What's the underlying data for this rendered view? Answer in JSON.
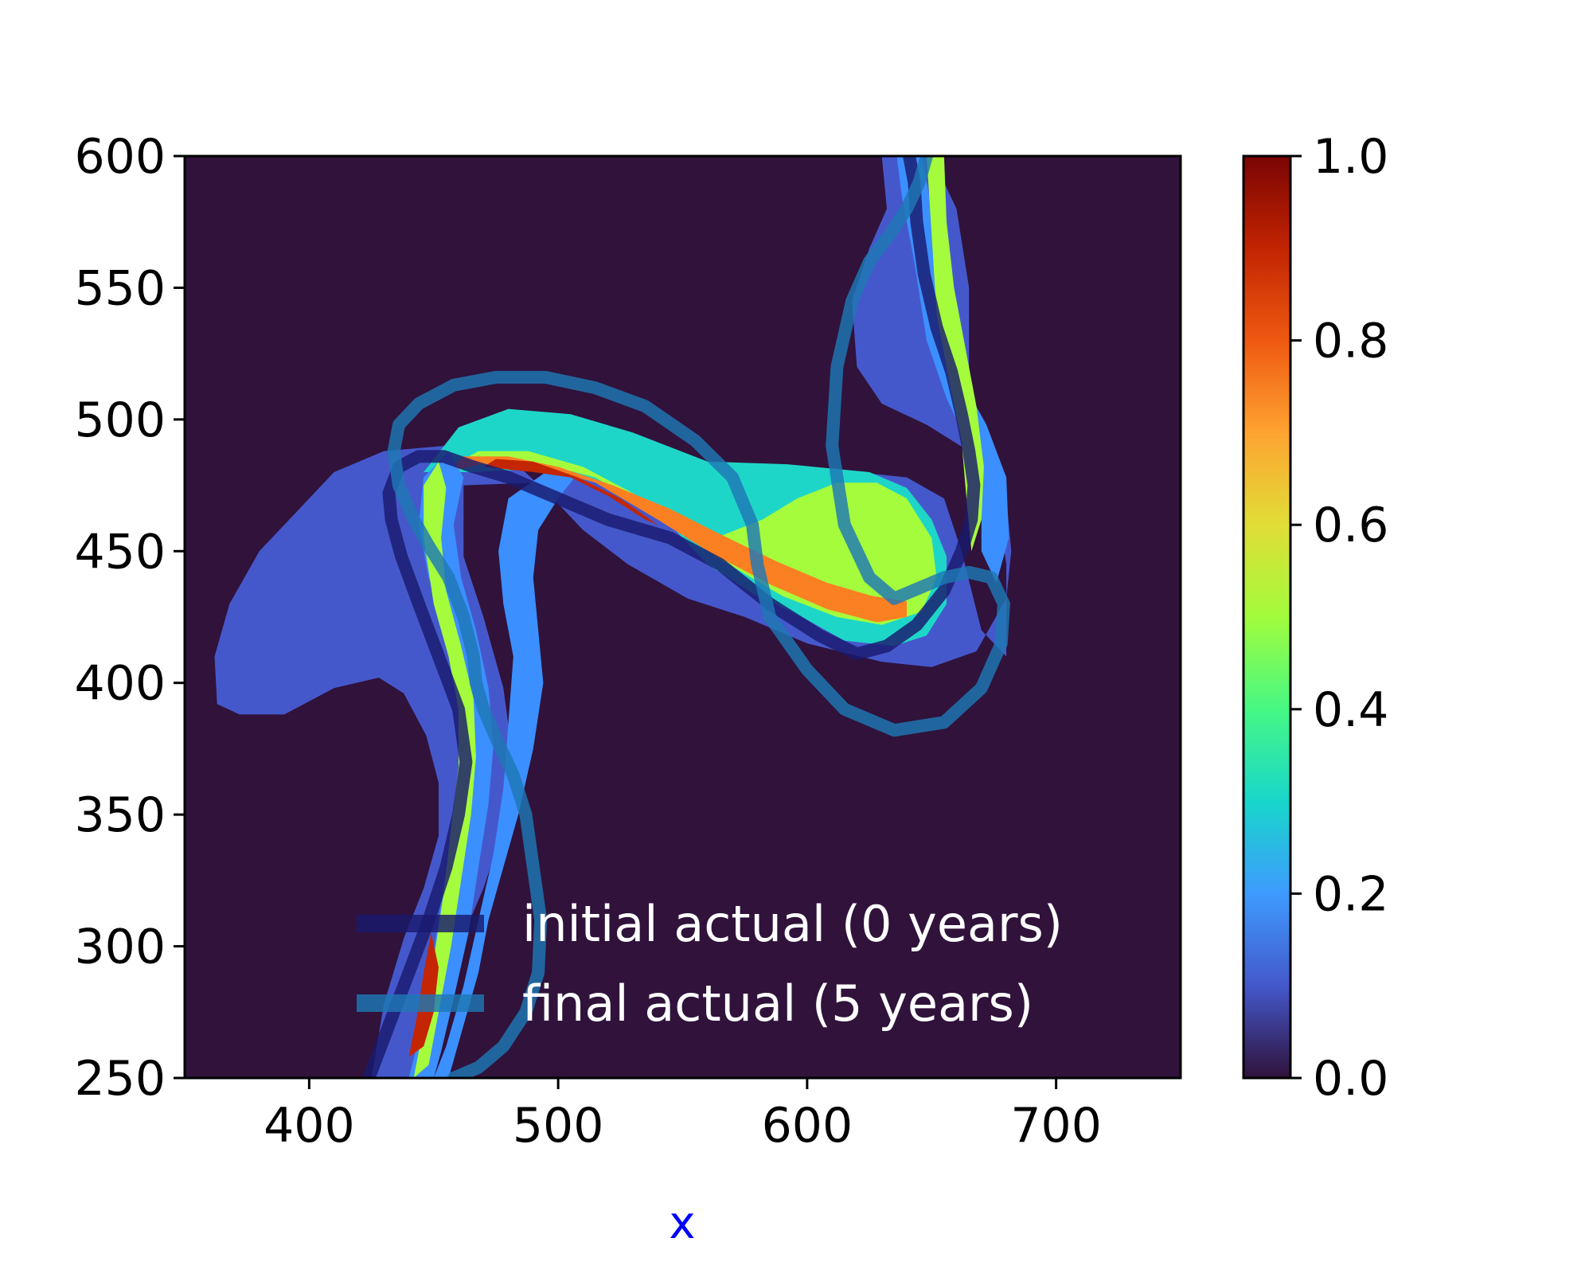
{
  "chart_data": {
    "type": "heatmap",
    "title": "",
    "xlabel": "x",
    "ylabel": "",
    "xlim": [
      350,
      750
    ],
    "ylim": [
      250,
      600
    ],
    "x_ticks": [
      "400",
      "500",
      "600",
      "700"
    ],
    "y_ticks": [
      "250",
      "300",
      "350",
      "400",
      "450",
      "500",
      "550",
      "600"
    ],
    "colorbar": {
      "range": [
        0.0,
        1.0
      ],
      "ticks": [
        "0.0",
        "0.2",
        "0.4",
        "0.6",
        "0.8",
        "1.0"
      ],
      "colormap": "turbo"
    },
    "background_value": 0.0,
    "background_color": "#30123b",
    "regions": [
      {
        "value": 0.1,
        "color": "#4558cb",
        "points": [
          [
            363,
            392
          ],
          [
            372,
            388
          ],
          [
            390,
            388
          ],
          [
            410,
            398
          ],
          [
            428,
            402
          ],
          [
            438,
            396
          ],
          [
            447,
            380
          ],
          [
            452,
            362
          ],
          [
            452,
            342
          ],
          [
            446,
            322
          ],
          [
            438,
            303
          ],
          [
            430,
            278
          ],
          [
            425,
            250
          ],
          [
            445,
            250
          ],
          [
            452,
            278
          ],
          [
            460,
            300
          ],
          [
            470,
            322
          ],
          [
            478,
            345
          ],
          [
            482,
            370
          ],
          [
            478,
            398
          ],
          [
            470,
            425
          ],
          [
            462,
            448
          ],
          [
            462,
            475
          ],
          [
            490,
            476
          ],
          [
            545,
            482
          ],
          [
            600,
            482
          ],
          [
            640,
            478
          ],
          [
            655,
            470
          ],
          [
            662,
            450
          ],
          [
            670,
            420
          ],
          [
            680,
            410
          ],
          [
            680,
            445
          ],
          [
            676,
            470
          ],
          [
            665,
            488
          ],
          [
            648,
            498
          ],
          [
            630,
            506
          ],
          [
            620,
            520
          ],
          [
            618,
            545
          ],
          [
            625,
            565
          ],
          [
            632,
            580
          ],
          [
            630,
            600
          ],
          [
            650,
            600
          ],
          [
            660,
            580
          ],
          [
            665,
            550
          ],
          [
            665,
            520
          ],
          [
            668,
            495
          ],
          [
            680,
            470
          ],
          [
            682,
            450
          ],
          [
            680,
            432
          ],
          [
            668,
            412
          ],
          [
            650,
            406
          ],
          [
            630,
            408
          ],
          [
            600,
            415
          ],
          [
            575,
            425
          ],
          [
            552,
            432
          ],
          [
            528,
            445
          ],
          [
            510,
            458
          ],
          [
            498,
            470
          ],
          [
            480,
            486
          ],
          [
            455,
            490
          ],
          [
            430,
            488
          ],
          [
            410,
            480
          ],
          [
            395,
            465
          ],
          [
            380,
            450
          ],
          [
            368,
            430
          ],
          [
            362,
            410
          ]
        ]
      },
      {
        "value": 0.2,
        "color": "#3b8fff",
        "points": [
          [
            450,
            250
          ],
          [
            455,
            262
          ],
          [
            462,
            285
          ],
          [
            468,
            310
          ],
          [
            474,
            335
          ],
          [
            478,
            360
          ],
          [
            480,
            385
          ],
          [
            482,
            410
          ],
          [
            478,
            430
          ],
          [
            476,
            450
          ],
          [
            480,
            470
          ],
          [
            495,
            480
          ],
          [
            510,
            482
          ],
          [
            500,
            470
          ],
          [
            492,
            458
          ],
          [
            490,
            440
          ],
          [
            492,
            420
          ],
          [
            494,
            400
          ],
          [
            490,
            375
          ],
          [
            484,
            350
          ],
          [
            478,
            330
          ],
          [
            472,
            310
          ],
          [
            468,
            290
          ],
          [
            462,
            270
          ],
          [
            456,
            250
          ]
        ]
      },
      {
        "value": 0.3,
        "color": "#1ed6c8",
        "points": [
          [
            446,
            480
          ],
          [
            460,
            497
          ],
          [
            480,
            504
          ],
          [
            505,
            502
          ],
          [
            530,
            495
          ],
          [
            560,
            484
          ],
          [
            592,
            483
          ],
          [
            625,
            480
          ],
          [
            640,
            474
          ],
          [
            650,
            462
          ],
          [
            656,
            448
          ],
          [
            656,
            430
          ],
          [
            648,
            418
          ],
          [
            635,
            414
          ],
          [
            615,
            416
          ],
          [
            598,
            425
          ],
          [
            578,
            434
          ],
          [
            560,
            445
          ],
          [
            545,
            460
          ],
          [
            530,
            472
          ],
          [
            508,
            479
          ],
          [
            486,
            481
          ],
          [
            465,
            480
          ]
        ]
      },
      {
        "value": 0.5,
        "color": "#a4fc3c",
        "points": [
          [
            453,
            480
          ],
          [
            468,
            484
          ],
          [
            490,
            484
          ],
          [
            515,
            478
          ],
          [
            542,
            462
          ],
          [
            565,
            447
          ],
          [
            590,
            433
          ],
          [
            612,
            425
          ],
          [
            630,
            422
          ],
          [
            646,
            427
          ],
          [
            652,
            440
          ],
          [
            650,
            455
          ],
          [
            640,
            470
          ],
          [
            628,
            476
          ],
          [
            612,
            476
          ],
          [
            596,
            470
          ],
          [
            582,
            462
          ],
          [
            566,
            456
          ],
          [
            550,
            460
          ],
          [
            530,
            472
          ],
          [
            510,
            482
          ],
          [
            488,
            488
          ],
          [
            468,
            488
          ]
        ]
      },
      {
        "value": 0.7,
        "color": "#fb8022",
        "points": [
          [
            455,
            480
          ],
          [
            470,
            483
          ],
          [
            492,
            482
          ],
          [
            515,
            476
          ],
          [
            540,
            462
          ],
          [
            562,
            449
          ],
          [
            586,
            437
          ],
          [
            608,
            428
          ],
          [
            628,
            423
          ],
          [
            640,
            425
          ],
          [
            640,
            431
          ],
          [
            626,
            433
          ],
          [
            608,
            438
          ],
          [
            588,
            446
          ],
          [
            566,
            456
          ],
          [
            545,
            466
          ],
          [
            522,
            475
          ],
          [
            500,
            482
          ],
          [
            480,
            486
          ],
          [
            462,
            486
          ]
        ]
      },
      {
        "value": 0.9,
        "color": "#c42503",
        "points": [
          [
            470,
            482
          ],
          [
            490,
            480
          ],
          [
            505,
            478
          ],
          [
            520,
            471
          ],
          [
            535,
            462
          ],
          [
            540,
            460
          ],
          [
            525,
            470
          ],
          [
            508,
            478
          ],
          [
            490,
            484
          ],
          [
            475,
            485
          ]
        ]
      },
      {
        "value": 0.2,
        "color": "#3b8fff",
        "points": [
          [
            636,
            600
          ],
          [
            646,
            600
          ],
          [
            652,
            570
          ],
          [
            656,
            540
          ],
          [
            662,
            515
          ],
          [
            672,
            498
          ],
          [
            680,
            478
          ],
          [
            681,
            455
          ],
          [
            676,
            438
          ],
          [
            670,
            450
          ],
          [
            670,
            470
          ],
          [
            665,
            490
          ],
          [
            656,
            508
          ],
          [
            648,
            530
          ],
          [
            643,
            560
          ],
          [
            638,
            585
          ]
        ]
      },
      {
        "value": 0.5,
        "color": "#a4fc3c",
        "points": [
          [
            648,
            600
          ],
          [
            655,
            600
          ],
          [
            656,
            575
          ],
          [
            659,
            550
          ],
          [
            664,
            525
          ],
          [
            668,
            505
          ],
          [
            671,
            482
          ],
          [
            670,
            462
          ],
          [
            666,
            450
          ],
          [
            664,
            470
          ],
          [
            662,
            492
          ],
          [
            657,
            515
          ],
          [
            652,
            540
          ],
          [
            650,
            570
          ]
        ]
      },
      {
        "value": 0.2,
        "color": "#3b8fff",
        "points": [
          [
            440,
            250
          ],
          [
            444,
            265
          ],
          [
            448,
            285
          ],
          [
            452,
            310
          ],
          [
            456,
            335
          ],
          [
            460,
            360
          ],
          [
            462,
            380
          ],
          [
            460,
            400
          ],
          [
            455,
            420
          ],
          [
            448,
            440
          ],
          [
            444,
            460
          ],
          [
            446,
            478
          ],
          [
            456,
            488
          ],
          [
            462,
            478
          ],
          [
            458,
            460
          ],
          [
            461,
            440
          ],
          [
            467,
            420
          ],
          [
            472,
            398
          ],
          [
            474,
            376
          ],
          [
            472,
            354
          ],
          [
            468,
            330
          ],
          [
            464,
            305
          ],
          [
            458,
            280
          ],
          [
            453,
            260
          ],
          [
            450,
            250
          ]
        ]
      },
      {
        "value": 0.5,
        "color": "#a4fc3c",
        "points": [
          [
            442,
            250
          ],
          [
            446,
            270
          ],
          [
            450,
            295
          ],
          [
            454,
            320
          ],
          [
            457,
            345
          ],
          [
            460,
            368
          ],
          [
            460,
            390
          ],
          [
            456,
            410
          ],
          [
            450,
            430
          ],
          [
            446,
            455
          ],
          [
            446,
            475
          ],
          [
            452,
            484
          ],
          [
            455,
            474
          ],
          [
            453,
            455
          ],
          [
            455,
            435
          ],
          [
            461,
            414
          ],
          [
            466,
            394
          ],
          [
            467,
            372
          ],
          [
            465,
            350
          ],
          [
            461,
            325
          ],
          [
            457,
            300
          ],
          [
            452,
            275
          ],
          [
            448,
            255
          ]
        ]
      },
      {
        "value": 0.9,
        "color": "#c42503",
        "points": [
          [
            440,
            258
          ],
          [
            443,
            272
          ],
          [
            446,
            290
          ],
          [
            449,
            305
          ],
          [
            452,
            292
          ],
          [
            450,
            275
          ],
          [
            446,
            262
          ]
        ]
      }
    ],
    "series": [
      {
        "name": "initial actual (0 years)",
        "color": "#1a1a6e",
        "x": [
          424,
          432,
          440,
          448,
          455,
          460,
          463,
          460,
          452,
          444,
          437,
          433,
          432,
          436,
          444,
          454,
          466,
          480,
          500,
          520,
          545,
          565,
          585,
          605,
          620,
          632,
          644,
          655,
          662,
          666,
          667,
          665,
          662,
          658,
          652,
          647,
          644,
          643,
          641
        ],
        "y": [
          250,
          270,
          290,
          310,
          330,
          350,
          370,
          390,
          410,
          430,
          448,
          462,
          472,
          482,
          486,
          486,
          482,
          478,
          470,
          462,
          455,
          445,
          430,
          418,
          411,
          414,
          422,
          435,
          450,
          462,
          475,
          488,
          502,
          518,
          535,
          555,
          575,
          590,
          600
        ]
      },
      {
        "name": "final actual (5 years)",
        "color": "#1f77b4",
        "x": [
          458,
          468,
          478,
          487,
          492,
          493,
          490,
          487,
          482,
          476,
          470,
          467,
          466,
          462,
          456,
          448,
          442,
          436,
          434,
          436,
          444,
          458,
          475,
          495,
          515,
          535,
          555,
          570,
          578,
          580,
          585,
          600,
          615,
          635,
          655,
          670,
          678,
          679,
          674,
          665,
          655,
          645,
          635,
          625,
          615,
          610,
          612,
          618,
          625,
          633,
          640,
          645,
          648
        ],
        "y": [
          250,
          254,
          262,
          275,
          290,
          310,
          330,
          350,
          365,
          377,
          390,
          400,
          410,
          425,
          440,
          452,
          462,
          475,
          488,
          498,
          506,
          513,
          516,
          516,
          512,
          505,
          492,
          478,
          460,
          445,
          425,
          405,
          390,
          382,
          385,
          398,
          415,
          430,
          440,
          442,
          440,
          436,
          432,
          440,
          460,
          490,
          520,
          545,
          560,
          570,
          580,
          590,
          600
        ]
      }
    ],
    "legend": {
      "placement": "lower center",
      "entries": [
        "initial actual (0 years)",
        "final actual (5 years)"
      ]
    }
  }
}
